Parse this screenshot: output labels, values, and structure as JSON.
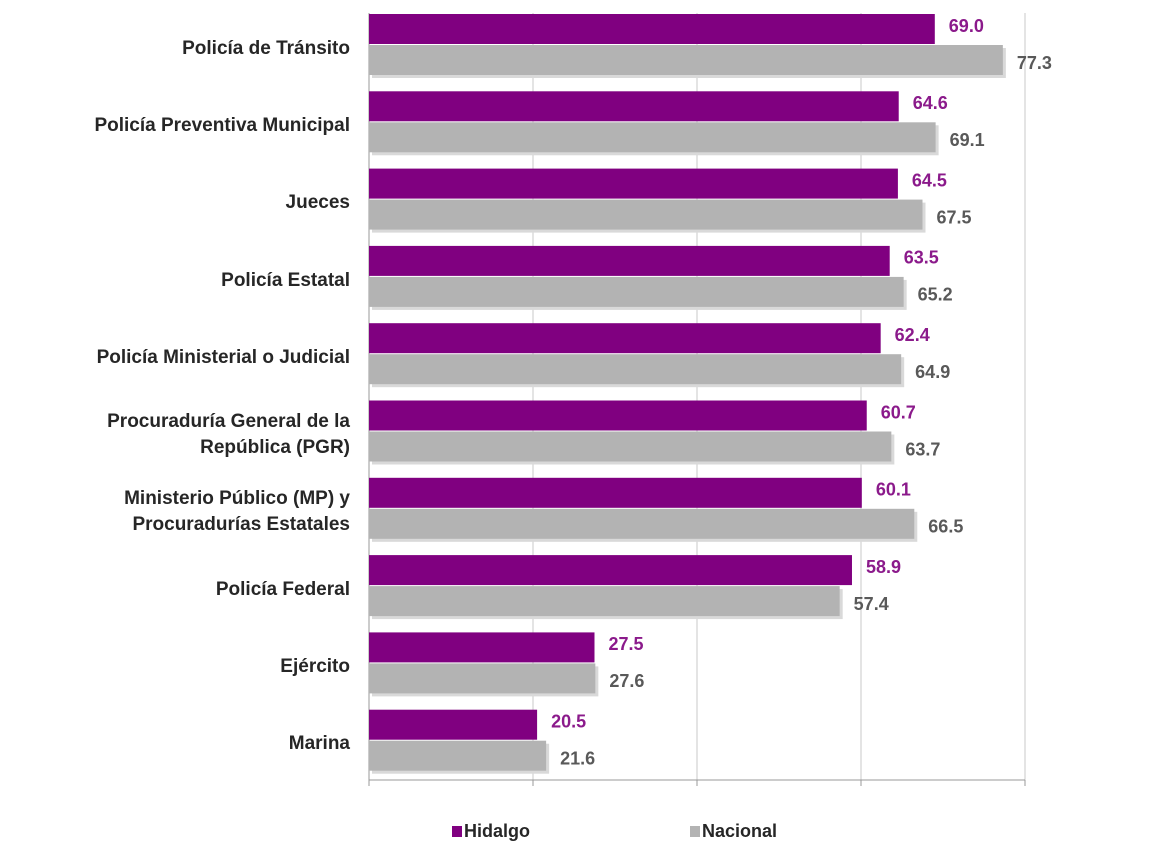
{
  "chart_data": {
    "type": "barh",
    "categories": [
      "Policía de Tránsito",
      "Policía Preventiva Municipal",
      "Jueces",
      "Policía Estatal",
      "Policía Ministerial o Judicial",
      "Procuraduría General de la\nRepública (PGR)",
      "Ministerio Público (MP) y\nProcuradurías Estatales",
      "Policía Federal",
      "Ejército",
      "Marina"
    ],
    "series": [
      {
        "name": "Hidalgo",
        "color": "#800080",
        "values": [
          69.0,
          64.6,
          64.5,
          63.5,
          62.4,
          60.7,
          60.1,
          58.9,
          27.5,
          20.5
        ],
        "value_labels": [
          "69.0",
          "64.6",
          "64.5",
          "63.5",
          "62.4",
          "60.7",
          "60.1",
          "58.9",
          "27.5",
          "20.5"
        ]
      },
      {
        "name": "Nacional",
        "color": "#b3b3b3",
        "values": [
          77.3,
          69.1,
          67.5,
          65.2,
          64.9,
          63.7,
          66.5,
          57.4,
          27.6,
          21.6
        ],
        "value_labels": [
          "77.3",
          "69.1",
          "67.5",
          "65.2",
          "64.9",
          "63.7",
          "66.5",
          "57.4",
          "27.6",
          "21.6"
        ]
      }
    ],
    "xlim": [
      0,
      80
    ],
    "xticks": [
      0,
      20,
      40,
      60,
      80
    ],
    "grid": true,
    "legend": "bottom"
  }
}
